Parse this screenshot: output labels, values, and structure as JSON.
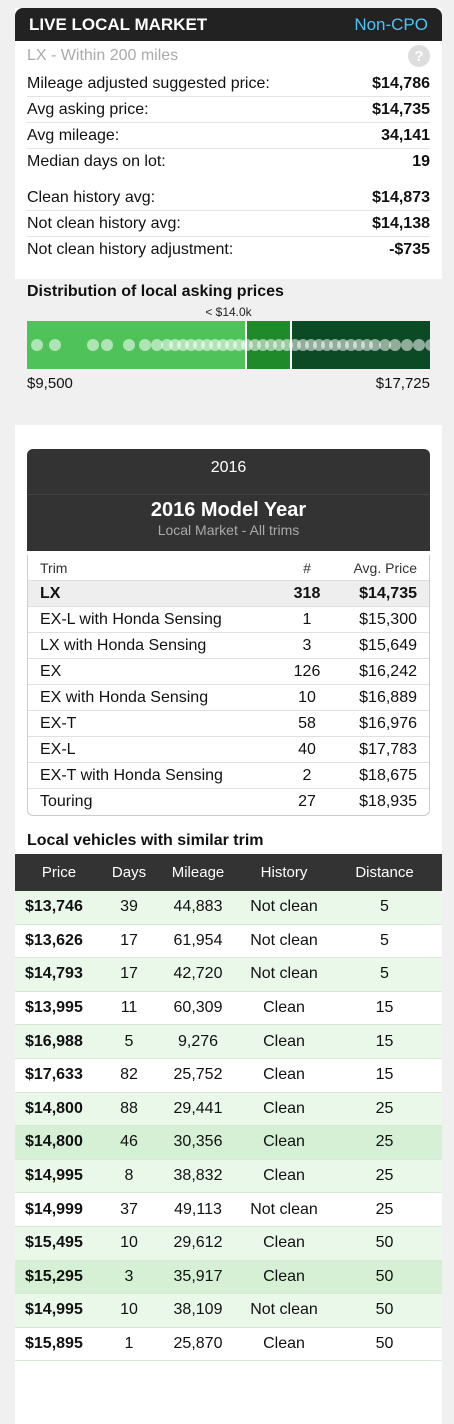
{
  "header": {
    "title": "LIVE LOCAL MARKET",
    "tag": "Non-CPO"
  },
  "subheader": {
    "text": "LX - Within 200 miles",
    "help_glyph": "?"
  },
  "stats": [
    {
      "label": "Mileage adjusted suggested price:",
      "value": "$14,786"
    },
    {
      "label": "Avg asking price:",
      "value": "$14,735"
    },
    {
      "label": "Avg mileage:",
      "value": "34,141"
    },
    {
      "label": "Median days on lot:",
      "value": "19"
    }
  ],
  "history": [
    {
      "label": "Clean history avg:",
      "value": "$14,873"
    },
    {
      "label": "Not clean history avg:",
      "value": "$14,138"
    },
    {
      "label": "Not clean history adjustment:",
      "value": "-$735"
    }
  ],
  "distribution": {
    "title": "Distribution of local asking prices",
    "marker": "< $14.0k",
    "min": "$9,500",
    "max": "$17,725",
    "colors": [
      "#4fc35a",
      "#1f8a2a",
      "#0b4a25"
    ]
  },
  "model_year": {
    "year": "2016",
    "title": "2016 Model Year",
    "subtitle": "Local Market - All trims"
  },
  "trims": {
    "headers": {
      "trim": "Trim",
      "count": "#",
      "avg": "Avg. Price"
    },
    "rows": [
      {
        "trim": "LX",
        "count": "318",
        "avg": "$14,735"
      },
      {
        "trim": "EX-L with Honda Sensing",
        "count": "1",
        "avg": "$15,300"
      },
      {
        "trim": "LX with Honda Sensing",
        "count": "3",
        "avg": "$15,649"
      },
      {
        "trim": "EX",
        "count": "126",
        "avg": "$16,242"
      },
      {
        "trim": "EX with Honda Sensing",
        "count": "10",
        "avg": "$16,889"
      },
      {
        "trim": "EX-T",
        "count": "58",
        "avg": "$16,976"
      },
      {
        "trim": "EX-L",
        "count": "40",
        "avg": "$17,783"
      },
      {
        "trim": "EX-T with Honda Sensing",
        "count": "2",
        "avg": "$18,675"
      },
      {
        "trim": "Touring",
        "count": "27",
        "avg": "$18,935"
      }
    ]
  },
  "similar": {
    "title": "Local vehicles with similar trim",
    "headers": {
      "price": "Price",
      "days": "Days",
      "mileage": "Mileage",
      "history": "History",
      "distance": "Distance"
    },
    "rows": [
      {
        "price": "$13,746",
        "days": "39",
        "mileage": "44,883",
        "history": "Not clean",
        "distance": "5"
      },
      {
        "price": "$13,626",
        "days": "17",
        "mileage": "61,954",
        "history": "Not clean",
        "distance": "5"
      },
      {
        "price": "$14,793",
        "days": "17",
        "mileage": "42,720",
        "history": "Not clean",
        "distance": "5"
      },
      {
        "price": "$13,995",
        "days": "11",
        "mileage": "60,309",
        "history": "Clean",
        "distance": "15"
      },
      {
        "price": "$16,988",
        "days": "5",
        "mileage": "9,276",
        "history": "Clean",
        "distance": "15"
      },
      {
        "price": "$17,633",
        "days": "82",
        "mileage": "25,752",
        "history": "Clean",
        "distance": "15"
      },
      {
        "price": "$14,800",
        "days": "88",
        "mileage": "29,441",
        "history": "Clean",
        "distance": "25"
      },
      {
        "price": "$14,800",
        "days": "46",
        "mileage": "30,356",
        "history": "Clean",
        "distance": "25"
      },
      {
        "price": "$14,995",
        "days": "8",
        "mileage": "38,832",
        "history": "Clean",
        "distance": "25"
      },
      {
        "price": "$14,999",
        "days": "37",
        "mileage": "49,113",
        "history": "Not clean",
        "distance": "25"
      },
      {
        "price": "$15,495",
        "days": "10",
        "mileage": "29,612",
        "history": "Clean",
        "distance": "50"
      },
      {
        "price": "$15,295",
        "days": "3",
        "mileage": "35,917",
        "history": "Clean",
        "distance": "50"
      },
      {
        "price": "$14,995",
        "days": "10",
        "mileage": "38,109",
        "history": "Not clean",
        "distance": "50"
      },
      {
        "price": "$15,895",
        "days": "1",
        "mileage": "25,870",
        "history": "Clean",
        "distance": "50"
      }
    ]
  }
}
